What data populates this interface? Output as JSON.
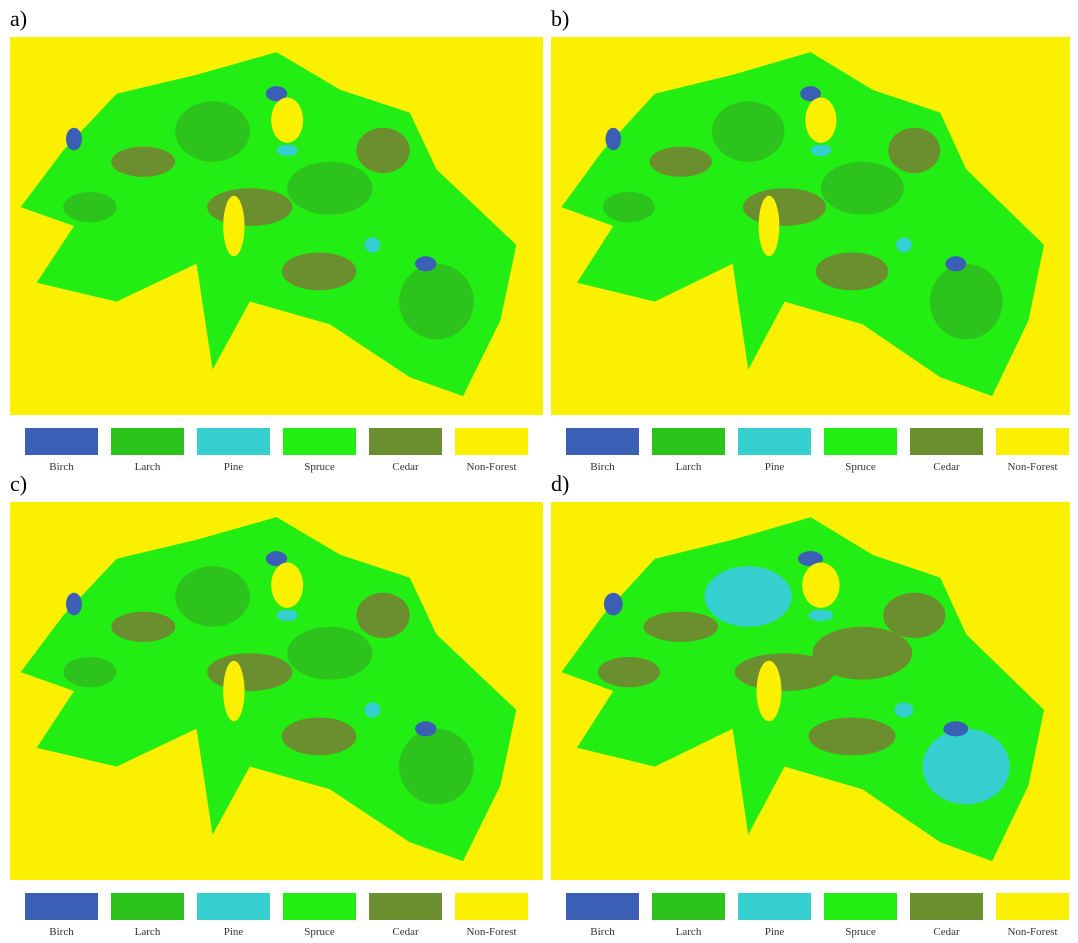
{
  "panels": [
    {
      "label": "a)"
    },
    {
      "label": "b)"
    },
    {
      "label": "c)"
    },
    {
      "label": "d)"
    }
  ],
  "legend": [
    {
      "name": "Birch",
      "color": "#3a5fb4"
    },
    {
      "name": "Larch",
      "color": "#2cc41c"
    },
    {
      "name": "Pine",
      "color": "#35cfcf"
    },
    {
      "name": "Spruce",
      "color": "#22ee14"
    },
    {
      "name": "Cedar",
      "color": "#6b8f2e"
    },
    {
      "name": "Non-Forest",
      "color": "#fbf000"
    }
  ]
}
